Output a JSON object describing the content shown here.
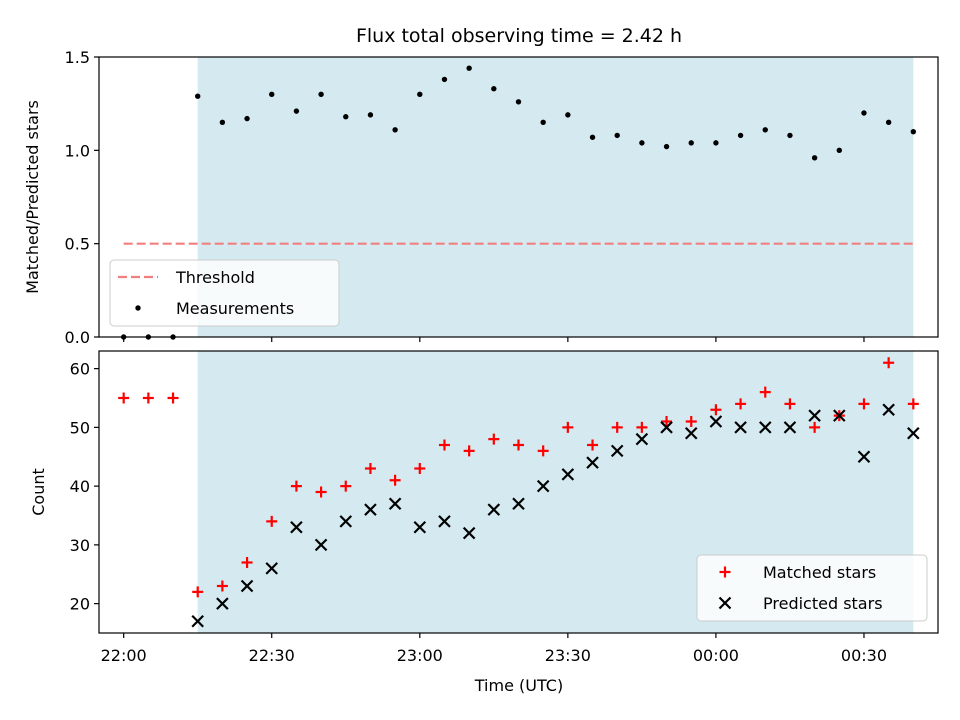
{
  "chart_data": {
    "type": "scatter",
    "title": "Flux total observing time = 2.42 h",
    "xlabel": "Time (UTC)",
    "x_ticks": [
      "22:00",
      "22:30",
      "23:00",
      "23:30",
      "00:00",
      "00:30"
    ],
    "time_axis": {
      "range": [
        "21:55",
        "00:45"
      ],
      "shaded_span": [
        "22:15",
        "00:40"
      ],
      "shade_color": "#d4eaf0"
    },
    "panels": [
      {
        "id": "ratio",
        "ylabel": "Matched/Predicted stars",
        "ylim": [
          0,
          1.5
        ],
        "y_ticks": [
          "0.0",
          "0.5",
          "1.0",
          "1.5"
        ],
        "legend_position": "lower-left",
        "series": [
          {
            "name": "Threshold",
            "kind": "line",
            "style": "dashed",
            "color": "#f08080",
            "x": [
              "22:00",
              "00:40"
            ],
            "y": [
              0.5,
              0.5
            ]
          },
          {
            "name": "Measurements",
            "kind": "dot",
            "color": "#000000",
            "x": [
              "22:00",
              "22:05",
              "22:10",
              "22:15",
              "22:20",
              "22:25",
              "22:30",
              "22:35",
              "22:40",
              "22:45",
              "22:50",
              "22:55",
              "23:00",
              "23:05",
              "23:10",
              "23:15",
              "23:20",
              "23:25",
              "23:30",
              "23:35",
              "23:40",
              "23:45",
              "23:50",
              "23:55",
              "00:00",
              "00:05",
              "00:10",
              "00:15",
              "00:20",
              "00:25",
              "00:30",
              "00:35",
              "00:40"
            ],
            "y": [
              0.0,
              0.0,
              0.0,
              1.29,
              1.15,
              1.17,
              1.3,
              1.21,
              1.3,
              1.18,
              1.19,
              1.11,
              1.3,
              1.38,
              1.44,
              1.33,
              1.26,
              1.15,
              1.19,
              1.07,
              1.08,
              1.04,
              1.02,
              1.04,
              1.04,
              1.08,
              1.11,
              1.08,
              0.96,
              1.0,
              1.2,
              1.15,
              1.1
            ]
          }
        ]
      },
      {
        "id": "count",
        "ylabel": "Count",
        "ylim": [
          15,
          63
        ],
        "y_ticks": [
          "20",
          "30",
          "40",
          "50",
          "60"
        ],
        "legend_position": "lower-right",
        "series": [
          {
            "name": "Matched stars",
            "kind": "plus",
            "color": "#ff0000",
            "x": [
              "22:00",
              "22:05",
              "22:10",
              "22:15",
              "22:20",
              "22:25",
              "22:30",
              "22:35",
              "22:40",
              "22:45",
              "22:50",
              "22:55",
              "23:00",
              "23:05",
              "23:10",
              "23:15",
              "23:20",
              "23:25",
              "23:30",
              "23:35",
              "23:40",
              "23:45",
              "23:50",
              "23:55",
              "00:00",
              "00:05",
              "00:10",
              "00:15",
              "00:20",
              "00:25",
              "00:30",
              "00:35",
              "00:40"
            ],
            "y": [
              55,
              55,
              55,
              22,
              23,
              27,
              34,
              40,
              39,
              40,
              43,
              41,
              43,
              47,
              46,
              48,
              47,
              46,
              50,
              47,
              50,
              50,
              51,
              51,
              53,
              54,
              56,
              54,
              50,
              52,
              54,
              61,
              54
            ]
          },
          {
            "name": "Predicted stars",
            "kind": "cross",
            "color": "#000000",
            "x": [
              "22:15",
              "22:20",
              "22:25",
              "22:30",
              "22:35",
              "22:40",
              "22:45",
              "22:50",
              "22:55",
              "23:00",
              "23:05",
              "23:10",
              "23:15",
              "23:20",
              "23:25",
              "23:30",
              "23:35",
              "23:40",
              "23:45",
              "23:50",
              "23:55",
              "00:00",
              "00:05",
              "00:10",
              "00:15",
              "00:20",
              "00:25",
              "00:30",
              "00:35",
              "00:40"
            ],
            "y": [
              17,
              20,
              23,
              26,
              33,
              30,
              34,
              36,
              37,
              33,
              34,
              32,
              36,
              37,
              40,
              42,
              44,
              46,
              48,
              50,
              49,
              51,
              50,
              50,
              50,
              52,
              52,
              45,
              53,
              49
            ]
          }
        ]
      }
    ]
  }
}
